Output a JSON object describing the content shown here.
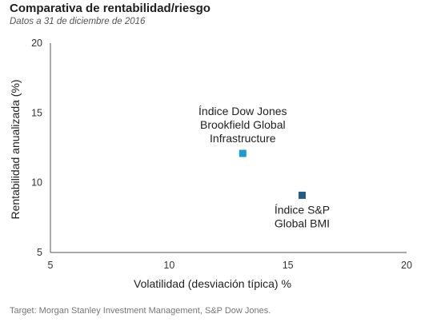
{
  "header": {
    "title": "Comparativa de rentabilidad/riesgo",
    "subtitle": "Datos a 31 de diciembre de 2016"
  },
  "footer": {
    "source": "Target: Morgan Stanley Investment Management, S&P Dow Jones."
  },
  "chart_data": {
    "type": "scatter",
    "title": "Comparativa de rentabilidad/riesgo",
    "subtitle": "Datos a 31 de diciembre de 2016",
    "xlabel": "Volatilidad (desviación típica) %",
    "ylabel": "Rentabilidad anualizada (%)",
    "xlim": [
      5,
      20
    ],
    "ylim": [
      5,
      20
    ],
    "xticks": [
      5,
      10,
      15,
      20
    ],
    "yticks": [
      5,
      10,
      15,
      20
    ],
    "grid": false,
    "legend": "none",
    "points": [
      {
        "label_lines": [
          "Índice Dow Jones",
          "Brookfield Global",
          "Infrastructure"
        ],
        "x": 13.1,
        "y": 12.1,
        "color": "#1b9ad6",
        "label_position": "above"
      },
      {
        "label_lines": [
          "Índice S&P",
          "Global BMI"
        ],
        "x": 15.6,
        "y": 9.1,
        "color": "#1f5c86",
        "label_position": "below"
      }
    ]
  }
}
